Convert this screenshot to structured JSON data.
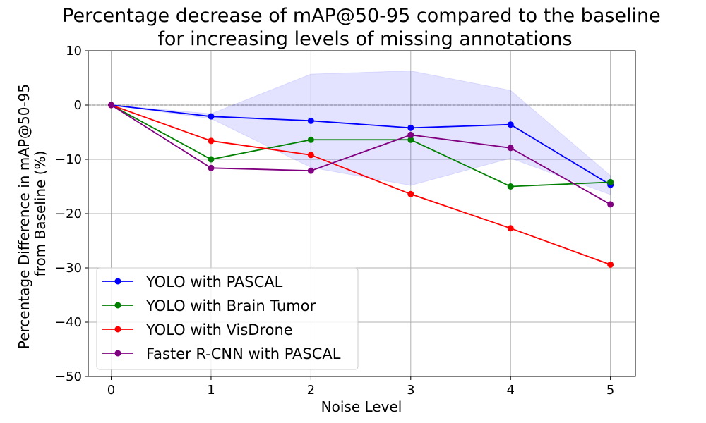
{
  "chart_data": {
    "type": "line",
    "title_line1": "Percentage decrease of mAP@50-95 compared to the baseline",
    "title_line2": "for increasing levels of missing annotations",
    "xlabel": "Noise Level",
    "ylabel_line1": "Percentage Difference in mAP@50-95",
    "ylabel_line2": "from Baseline (%)",
    "x": [
      0,
      1,
      2,
      3,
      4,
      5
    ],
    "xlim": [
      -0.23,
      5.25
    ],
    "ylim": [
      -50,
      10
    ],
    "xticks": [
      "0",
      "1",
      "2",
      "3",
      "4",
      "5"
    ],
    "yticks": [
      10,
      0,
      -10,
      -20,
      -30,
      -40,
      -50
    ],
    "ytick_labels": [
      "10",
      "0",
      "−10",
      "−20",
      "−30",
      "−40",
      "−50"
    ],
    "grid": true,
    "baseline_line": 0,
    "legend_position": "lower-left",
    "band": {
      "color": "#0000ff",
      "upper": [
        0,
        -1.6,
        5.7,
        6.3,
        2.7,
        -13
      ],
      "lower": [
        0,
        -2.5,
        -11.5,
        -14.8,
        -9.8,
        -16.5
      ]
    },
    "series": [
      {
        "name": "YOLO with PASCAL",
        "color": "#0000ff",
        "values": [
          0,
          -2.1,
          -2.9,
          -4.2,
          -3.6,
          -14.7
        ]
      },
      {
        "name": "YOLO with Brain Tumor",
        "color": "#008000",
        "values": [
          0,
          -10,
          -6.4,
          -6.4,
          -15,
          -14.2
        ]
      },
      {
        "name": "YOLO with VisDrone",
        "color": "#ff0000",
        "values": [
          0,
          -6.6,
          -9.2,
          -16.4,
          -22.7,
          -29.4
        ]
      },
      {
        "name": "Faster R-CNN with PASCAL",
        "color": "#800080",
        "values": [
          0,
          -11.6,
          -12.1,
          -5.5,
          -7.9,
          -18.3
        ]
      }
    ]
  }
}
